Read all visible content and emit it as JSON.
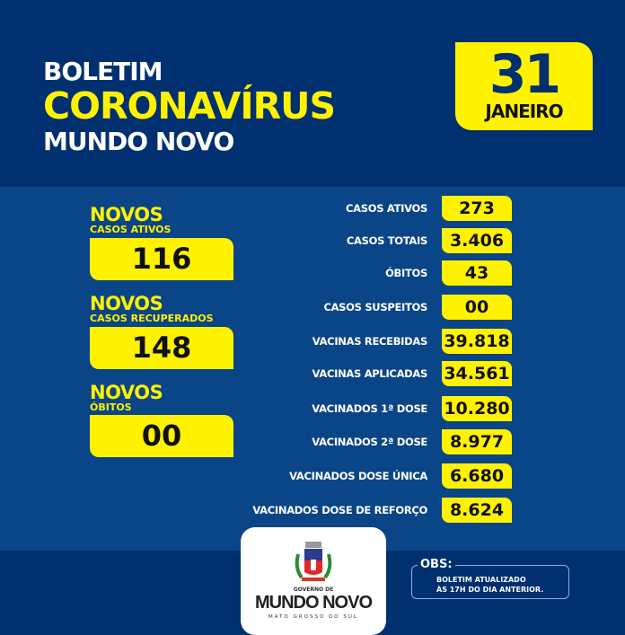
{
  "header": {
    "line1": "BOLETIM",
    "line2": "CORONAVÍRUS",
    "line3": "MUNDO NOVO"
  },
  "date": {
    "day": "31",
    "month": "JANEIRO"
  },
  "new": [
    {
      "title": "NOVOS",
      "subtitle": "CASOS ATIVOS",
      "value": "116"
    },
    {
      "title": "NOVOS",
      "subtitle": "CASOS RECUPERADOS",
      "value": "148"
    },
    {
      "title": "NOVOS",
      "subtitle": "ÓBITOS",
      "value": "00"
    }
  ],
  "stats": [
    {
      "label": "CASOS ATIVOS",
      "value": "273"
    },
    {
      "label": "CASOS TOTAIS",
      "value": "3.406"
    },
    {
      "label": "ÓBITOS",
      "value": "43"
    },
    {
      "label": "CASOS SUSPEITOS",
      "value": "00"
    },
    {
      "label": "VACINAS RECEBIDAS",
      "value": "39.818"
    },
    {
      "label": "VACINAS APLICADAS",
      "value": "34.561"
    },
    {
      "label": "VACINADOS 1ª DOSE",
      "value": "10.280"
    },
    {
      "label": "VACINADOS 2ª DOSE",
      "value": "8.977"
    },
    {
      "label": "VACINADOS DOSE ÚNICA",
      "value": "6.680"
    },
    {
      "label": "VACINADOS DOSE DE REFORÇO",
      "value": "8.624"
    }
  ],
  "logo": {
    "top": "GOVERNO DE",
    "name": "MUNDO NOVO",
    "state": "MATO GROSSO DO SUL"
  },
  "obs": {
    "title": "OBS:",
    "line1": "BOLETIM ATUALIZADO",
    "line2": "ÀS 17H DO DIA ANTERIOR."
  },
  "colors": {
    "navy": "#00306f",
    "band": "#0a4587",
    "yellow": "#fff200"
  }
}
